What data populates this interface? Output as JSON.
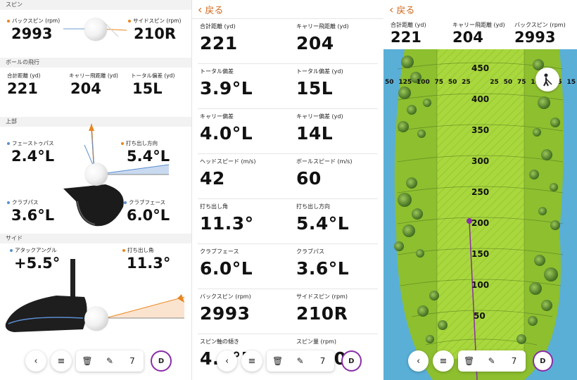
{
  "left": {
    "spin_section": "スピン",
    "backspin_label": "バックスピン (rpm)",
    "backspin_value": "2993",
    "sidespin_label": "サイドスピン (rpm)",
    "sidespin_value": "210R",
    "flight_section": "ボールの飛行",
    "total_label": "合計距離 (yd)",
    "total_value": "221",
    "carry_label": "キャリー飛距離 (yd)",
    "carry_value": "204",
    "total_dev_label": "トータル偏差 (yd)",
    "total_dev_value": "15L",
    "top_section": "上部",
    "face_to_path_label": "フェーストゥパス",
    "face_to_path_value": "2.4°L",
    "launch_dir_label": "打ち出し方向",
    "launch_dir_value": "5.4°L",
    "club_path_label": "クラブパス",
    "club_path_value": "3.6°L",
    "club_face_label": "クラブフェース",
    "club_face_value": "6.0°L",
    "side_section": "サイド",
    "attack_label": "アタックアングル",
    "attack_value": "+5.5°",
    "launch_angle_label": "打ち出し角",
    "launch_angle_value": "11.3°"
  },
  "middle": {
    "back_label": "戻る",
    "cells": [
      {
        "label": "合計距離 (yd)",
        "value": "221"
      },
      {
        "label": "キャリー飛距離 (yd)",
        "value": "204"
      },
      {
        "label": "トータル偏差",
        "value": "3.9°L"
      },
      {
        "label": "トータル偏差 (yd)",
        "value": "15L"
      },
      {
        "label": "キャリー偏差",
        "value": "4.0°L"
      },
      {
        "label": "キャリー偏差 (yd)",
        "value": "14L"
      },
      {
        "label": "ヘッドスピード (m/s)",
        "value": "42"
      },
      {
        "label": "ボールスピード (m/s)",
        "value": "60"
      },
      {
        "label": "打ち出し角",
        "value": "11.3°"
      },
      {
        "label": "打ち出し方向",
        "value": "5.4°L"
      },
      {
        "label": "クラブフェース",
        "value": "6.0°L"
      },
      {
        "label": "クラブパス",
        "value": "3.6°L"
      },
      {
        "label": "バックスピン (rpm)",
        "value": "2993"
      },
      {
        "label": "サイドスピン (rpm)",
        "value": "210R"
      },
      {
        "label": "スピン軸の傾き",
        "value": "4.0°R"
      },
      {
        "label": "スピン量 (rpm)",
        "value": "3000"
      }
    ]
  },
  "right": {
    "back_label": "戻る",
    "total_label": "合計距離 (yd)",
    "total_value": "221",
    "carry_label": "キャリー飛距離 (yd)",
    "carry_value": "204",
    "backspin_label": "バックスピン (rpm)",
    "backspin_value": "2993",
    "yard_markers": [
      "450",
      "400",
      "350",
      "300",
      "250",
      "200",
      "150",
      "100",
      "50"
    ],
    "lateral_labels": [
      "50",
      "125",
      "100",
      "75",
      "50",
      "25",
      "",
      "25",
      "50",
      "75",
      "100",
      "125",
      "15"
    ]
  },
  "toolbar": {
    "back_icon": "‹",
    "menu_icon": "≡",
    "trash_icon": "🗑",
    "edit_icon": "✎",
    "count": "7",
    "d_label": "D"
  },
  "colors": {
    "accent": "#d2691e",
    "purple": "#8a2ea8",
    "fairway": "#a6d93a",
    "rough": "#8dbf2f",
    "water": "#5aafd7"
  }
}
